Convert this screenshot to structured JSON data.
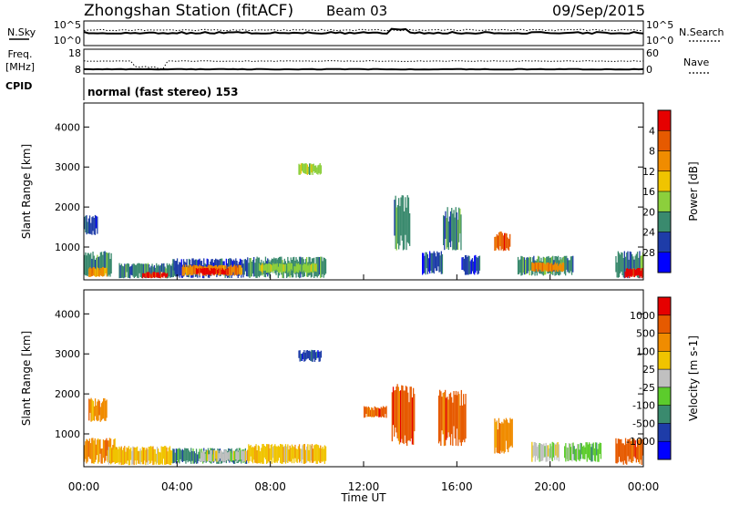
{
  "header": {
    "station": "Zhongshan Station (fitACF)",
    "beam": "Beam 03",
    "date": "09/Sep/2015"
  },
  "top_panels": {
    "nsky_label": "N.Sky",
    "nsky_ticks": [
      "10^5",
      "10^0"
    ],
    "nsearch_label": "N.Search",
    "nsearch_ticks": [
      "10^5",
      "10^0"
    ],
    "freq_label_1": "Freq.",
    "freq_label_2": "[MHz]",
    "freq_ticks": [
      "18",
      "8"
    ],
    "nave_label": "Nave",
    "nave_ticks": [
      "60",
      "0"
    ],
    "cpid_label": "CPID",
    "cpid_text": "normal (fast stereo) 153"
  },
  "chart_data": [
    {
      "type": "heatmap",
      "title": "",
      "xlabel": "",
      "ylabel": "Slant Range [km]",
      "ylim": [
        180,
        4600
      ],
      "yticks": [
        "1000",
        "2000",
        "3000",
        "4000"
      ],
      "colorbar": {
        "label": "Power [dB]",
        "ticks": [
          "4",
          "8",
          "12",
          "16",
          "20",
          "24",
          "28"
        ],
        "colors": [
          "#0000ff",
          "#1e3ca8",
          "#3a8a6e",
          "#8ccf3c",
          "#f0c400",
          "#f08c00",
          "#e65a00",
          "#e60000"
        ]
      },
      "patches": [
        {
          "t0": 0.0,
          "t1": 1.2,
          "r0": 250,
          "r1": 900,
          "c": 2
        },
        {
          "t0": 0.2,
          "t1": 1.0,
          "r0": 250,
          "r1": 500,
          "c": 5
        },
        {
          "t0": 0.0,
          "t1": 0.6,
          "r0": 1300,
          "r1": 1800,
          "c": 1
        },
        {
          "t0": 1.5,
          "t1": 4.0,
          "r0": 220,
          "r1": 600,
          "c": 2
        },
        {
          "t0": 2.5,
          "t1": 3.6,
          "r0": 220,
          "r1": 380,
          "c": 7
        },
        {
          "t0": 3.8,
          "t1": 7.0,
          "r0": 220,
          "r1": 720,
          "c": 1
        },
        {
          "t0": 4.2,
          "t1": 6.8,
          "r0": 280,
          "r1": 560,
          "c": 5
        },
        {
          "t0": 4.8,
          "t1": 6.2,
          "r0": 300,
          "r1": 480,
          "c": 7
        },
        {
          "t0": 7.0,
          "t1": 10.4,
          "r0": 220,
          "r1": 760,
          "c": 2
        },
        {
          "t0": 7.5,
          "t1": 10.0,
          "r0": 350,
          "r1": 600,
          "c": 3
        },
        {
          "t0": 9.2,
          "t1": 10.2,
          "r0": 2800,
          "r1": 3100,
          "c": 3
        },
        {
          "t0": 13.3,
          "t1": 14.0,
          "r0": 900,
          "r1": 2300,
          "c": 2
        },
        {
          "t0": 15.4,
          "t1": 16.2,
          "r0": 900,
          "r1": 2000,
          "c": 2
        },
        {
          "t0": 14.5,
          "t1": 15.4,
          "r0": 300,
          "r1": 900,
          "c": 1
        },
        {
          "t0": 16.2,
          "t1": 17.0,
          "r0": 300,
          "r1": 800,
          "c": 1
        },
        {
          "t0": 17.6,
          "t1": 18.3,
          "r0": 900,
          "r1": 1400,
          "c": 6
        },
        {
          "t0": 18.6,
          "t1": 21.0,
          "r0": 280,
          "r1": 780,
          "c": 2
        },
        {
          "t0": 19.2,
          "t1": 20.6,
          "r0": 380,
          "r1": 620,
          "c": 5
        },
        {
          "t0": 22.8,
          "t1": 24.0,
          "r0": 220,
          "r1": 900,
          "c": 2
        },
        {
          "t0": 23.2,
          "t1": 24.0,
          "r0": 220,
          "r1": 480,
          "c": 7
        }
      ]
    },
    {
      "type": "heatmap",
      "title": "",
      "xlabel": "Time UT",
      "ylabel": "Slant Range [km]",
      "ylim": [
        180,
        4600
      ],
      "yticks": [
        "1000",
        "2000",
        "3000",
        "4000"
      ],
      "xticks": [
        "00:00",
        "04:00",
        "08:00",
        "12:00",
        "16:00",
        "20:00",
        "00:00"
      ],
      "xlim": [
        0,
        24
      ],
      "colorbar": {
        "label": "Velocity [m s-1]",
        "ticks": [
          "1000",
          "500",
          "100",
          "25",
          "-25",
          "-100",
          "-500",
          "-1000"
        ],
        "colors": [
          "#0000ff",
          "#1e3ca8",
          "#3a8a6e",
          "#5ccc2c",
          "#c0c0c0",
          "#f0c400",
          "#f08c00",
          "#e65a00",
          "#e60000"
        ]
      },
      "patches": [
        {
          "t0": 0.0,
          "t1": 1.4,
          "r0": 250,
          "r1": 900,
          "c": 6
        },
        {
          "t0": 1.0,
          "t1": 3.8,
          "r0": 220,
          "r1": 700,
          "c": 5
        },
        {
          "t0": 0.2,
          "t1": 1.0,
          "r0": 1300,
          "r1": 1900,
          "c": 6
        },
        {
          "t0": 3.8,
          "t1": 7.0,
          "r0": 250,
          "r1": 650,
          "c": 2
        },
        {
          "t0": 5.0,
          "t1": 7.0,
          "r0": 300,
          "r1": 600,
          "c": 4
        },
        {
          "t0": 7.0,
          "t1": 10.4,
          "r0": 250,
          "r1": 750,
          "c": 5
        },
        {
          "t0": 9.2,
          "t1": 10.2,
          "r0": 2800,
          "r1": 3100,
          "c": 1
        },
        {
          "t0": 13.2,
          "t1": 14.2,
          "r0": 700,
          "r1": 2300,
          "c": 7
        },
        {
          "t0": 15.2,
          "t1": 16.4,
          "r0": 700,
          "r1": 2100,
          "c": 7
        },
        {
          "t0": 12.0,
          "t1": 13.0,
          "r0": 1400,
          "r1": 1700,
          "c": 7
        },
        {
          "t0": 17.6,
          "t1": 18.4,
          "r0": 500,
          "r1": 1400,
          "c": 6
        },
        {
          "t0": 19.2,
          "t1": 20.4,
          "r0": 300,
          "r1": 800,
          "c": 4
        },
        {
          "t0": 20.6,
          "t1": 22.2,
          "r0": 300,
          "r1": 800,
          "c": 3
        },
        {
          "t0": 22.8,
          "t1": 24.0,
          "r0": 220,
          "r1": 900,
          "c": 7
        }
      ]
    }
  ]
}
